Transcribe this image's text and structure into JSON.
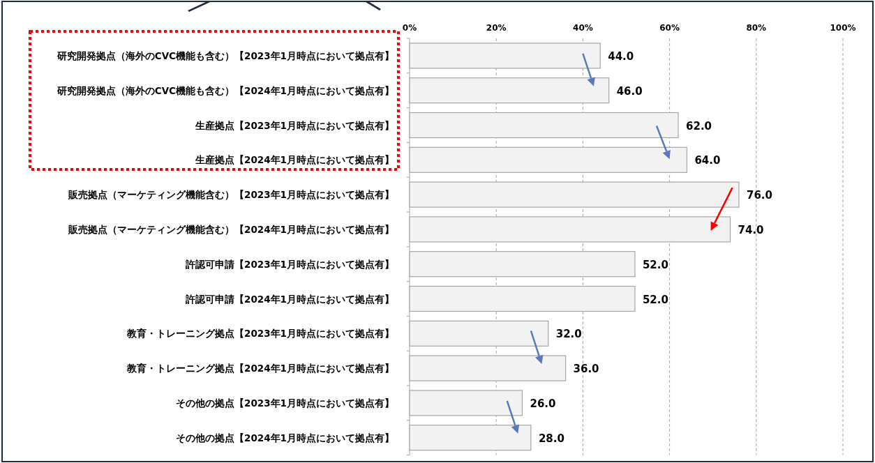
{
  "chart_data": {
    "type": "bar",
    "orientation": "horizontal",
    "categories": [
      "研究開発拠点（海外のCVC機能も含む）【2023年1月時点において拠点有】",
      "研究開発拠点（海外のCVC機能も含む）【2024年1月時点において拠点有】",
      "生産拠点【2023年1月時点において拠点有】",
      "生産拠点【2024年1月時点において拠点有】",
      "販売拠点（マーケティング機能含む）【2023年1月時点において拠点有】",
      "販売拠点（マーケティング機能含む）【2024年1月時点において拠点有】",
      "許認可申請【2023年1月時点において拠点有】",
      "許認可申請【2024年1月時点において拠点有】",
      "教育・トレーニング拠点【2023年1月時点において拠点有】",
      "教育・トレーニング拠点【2024年1月時点において拠点有】",
      "その他の拠点【2023年1月時点において拠点有】",
      "その他の拠点【2024年1月時点において拠点有】"
    ],
    "values": [
      44,
      46,
      62,
      64,
      76,
      74,
      52,
      52,
      32,
      36,
      26,
      28
    ],
    "value_labels": [
      "44.0",
      "46.0",
      "62.0",
      "64.0",
      "76.0",
      "74.0",
      "52.0",
      "52.0",
      "32.0",
      "36.0",
      "26.0",
      "28.0"
    ],
    "color": "#f2f2f2",
    "xlim": [
      0,
      100
    ],
    "xticks": [
      {
        "value": 0,
        "label": "0%"
      },
      {
        "value": 20,
        "label": "20%"
      },
      {
        "value": 40,
        "label": "40%"
      },
      {
        "value": 60,
        "label": "60%"
      },
      {
        "value": 80,
        "label": "80%"
      },
      {
        "value": 100,
        "label": "100%"
      }
    ],
    "grid": "x"
  }
}
